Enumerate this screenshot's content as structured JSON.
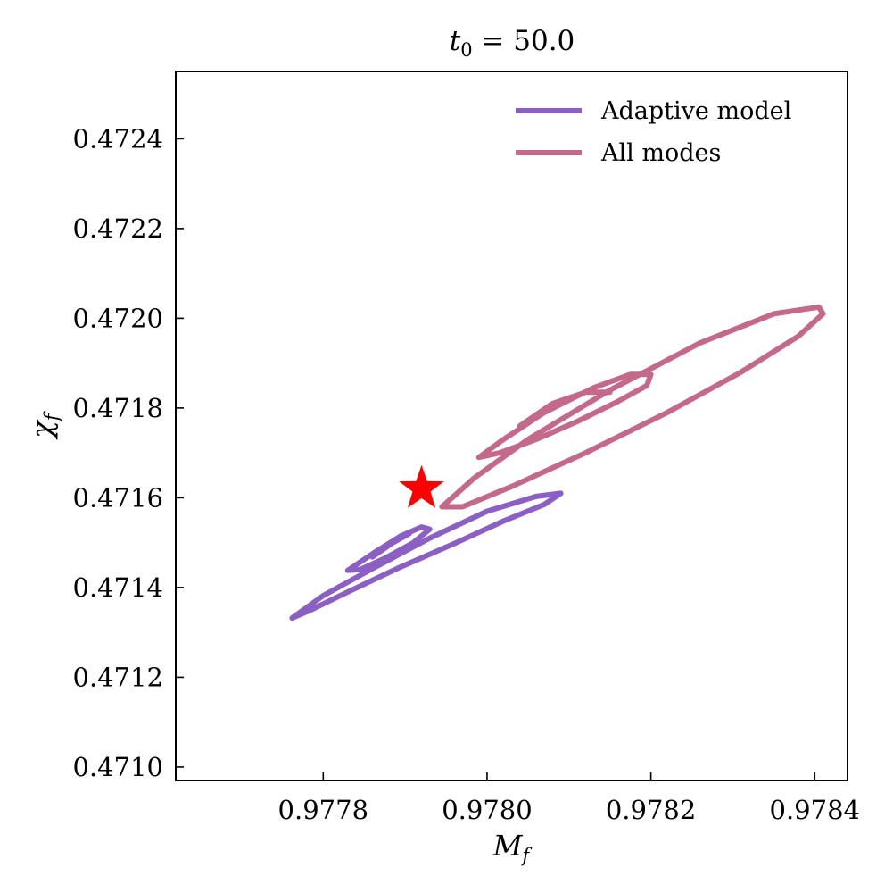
{
  "chart_data": {
    "type": "line",
    "title": {
      "var": "t",
      "sub": "0",
      "rest": " = 50.0"
    },
    "xlabel": {
      "var": "M",
      "sub": "f"
    },
    "ylabel": {
      "var": "χ",
      "sub": "f"
    },
    "xlim": [
      0.97762,
      0.97844
    ],
    "ylim": [
      0.47097,
      0.47255
    ],
    "xticks": [
      "0.9778",
      "0.9780",
      "0.9782",
      "0.9784"
    ],
    "xtick_values": [
      0.9778,
      0.978,
      0.9782,
      0.9784
    ],
    "yticks": [
      "0.4710",
      "0.4712",
      "0.4714",
      "0.4716",
      "0.4718",
      "0.4720",
      "0.4722",
      "0.4724"
    ],
    "ytick_values": [
      0.471,
      0.4712,
      0.4714,
      0.4716,
      0.4718,
      0.472,
      0.4722,
      0.4724
    ],
    "legend_position": "top-right",
    "grid": false,
    "series": [
      {
        "name": "Adaptive model",
        "color": "#8c5fc4",
        "contours": [
          [
            [
              0.977762,
              0.471332
            ],
            [
              0.9778,
              0.471382
            ],
            [
              0.97786,
              0.471442
            ],
            [
              0.97793,
              0.47151
            ],
            [
              0.978,
              0.47157
            ],
            [
              0.97806,
              0.471603
            ],
            [
              0.97809,
              0.47161
            ],
            [
              0.97807,
              0.471585
            ],
            [
              0.97802,
              0.471548
            ],
            [
              0.97796,
              0.471498
            ],
            [
              0.97789,
              0.471442
            ],
            [
              0.97783,
              0.47139
            ],
            [
              0.977785,
              0.47135
            ],
            [
              0.977762,
              0.471332
            ]
          ],
          [
            [
              0.97783,
              0.471438
            ],
            [
              0.97786,
              0.471475
            ],
            [
              0.977895,
              0.471515
            ],
            [
              0.97792,
              0.471535
            ],
            [
              0.97793,
              0.47153
            ],
            [
              0.97791,
              0.4715
            ],
            [
              0.977875,
              0.471465
            ],
            [
              0.977845,
              0.47144
            ],
            [
              0.97783,
              0.471438
            ]
          ],
          [
            [
              0.97786,
              0.471468
            ],
            [
              0.977885,
              0.4715
            ],
            [
              0.977905,
              0.47152
            ]
          ]
        ]
      },
      {
        "name": "All modes",
        "color": "#c4698a",
        "contours": [
          [
            [
              0.977945,
              0.47158
            ],
            [
              0.977985,
              0.471645
            ],
            [
              0.97805,
              0.47173
            ],
            [
              0.97815,
              0.47184
            ],
            [
              0.97826,
              0.471945
            ],
            [
              0.97835,
              0.47201
            ],
            [
              0.978405,
              0.472025
            ],
            [
              0.97841,
              0.47201
            ],
            [
              0.97838,
              0.47196
            ],
            [
              0.97831,
              0.47188
            ],
            [
              0.97822,
              0.47179
            ],
            [
              0.97812,
              0.4717
            ],
            [
              0.97803,
              0.471625
            ],
            [
              0.97797,
              0.47158
            ],
            [
              0.977945,
              0.47158
            ]
          ],
          [
            [
              0.97799,
              0.47169
            ],
            [
              0.97802,
              0.47173
            ],
            [
              0.97807,
              0.47179
            ],
            [
              0.97813,
              0.471845
            ],
            [
              0.978175,
              0.471875
            ],
            [
              0.9782,
              0.471875
            ],
            [
              0.978195,
              0.47185
            ],
            [
              0.97816,
              0.471815
            ],
            [
              0.97811,
              0.47177
            ],
            [
              0.97806,
              0.47173
            ],
            [
              0.978015,
              0.4717
            ],
            [
              0.97799,
              0.47169
            ]
          ],
          [
            [
              0.97804,
              0.47176
            ],
            [
              0.97808,
              0.47181
            ],
            [
              0.97812,
              0.471835
            ],
            [
              0.97815,
              0.471835
            ]
          ]
        ]
      }
    ],
    "marker": {
      "shape": "star",
      "x": 0.97792,
      "y": 0.47162,
      "color": "#ff0000"
    }
  }
}
